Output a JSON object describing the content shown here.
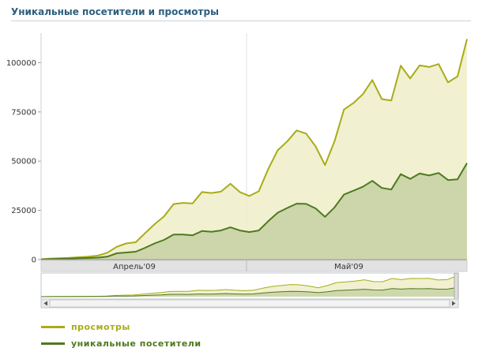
{
  "title": "Уникальные посетители и просмотры",
  "colors": {
    "views_line": "#a8ac18",
    "views_fill": "#eeedc8",
    "visitors_line": "#4e7a1e",
    "visitors_fill": "#c9d3a6",
    "title": "#2d5f7f",
    "axis_band": "#e2e2e2"
  },
  "chart_data": {
    "type": "area",
    "x_month_labels": [
      "Апрель'09",
      "Май'09"
    ],
    "y_ticks": [
      0,
      25000,
      50000,
      75000,
      100000
    ],
    "ylim": [
      0,
      115000
    ],
    "series": [
      {
        "name": "просмотры",
        "values": [
          200,
          500,
          700,
          900,
          1200,
          1500,
          2000,
          3500,
          6500,
          8200,
          8800,
          13500,
          18000,
          22000,
          28200,
          28800,
          28500,
          34300,
          33800,
          34500,
          38500,
          34300,
          32300,
          34700,
          46000,
          55500,
          60000,
          65600,
          64000,
          57500,
          48000,
          60000,
          76200,
          79500,
          84000,
          91200,
          81500,
          80800,
          98500,
          92000,
          98600,
          97800,
          99300,
          90000,
          93000,
          112000
        ]
      },
      {
        "name": "уникальные посетители",
        "values": [
          100,
          300,
          400,
          500,
          700,
          800,
          1000,
          1500,
          3200,
          3600,
          4000,
          6000,
          8200,
          10000,
          12700,
          12700,
          12300,
          14500,
          14100,
          14800,
          16400,
          14800,
          14000,
          14800,
          19500,
          23800,
          26200,
          28400,
          28300,
          26000,
          21700,
          26500,
          33000,
          35000,
          37000,
          40000,
          36400,
          35600,
          43400,
          41000,
          43700,
          42700,
          44000,
          40400,
          40800,
          49000
        ]
      }
    ]
  }
}
